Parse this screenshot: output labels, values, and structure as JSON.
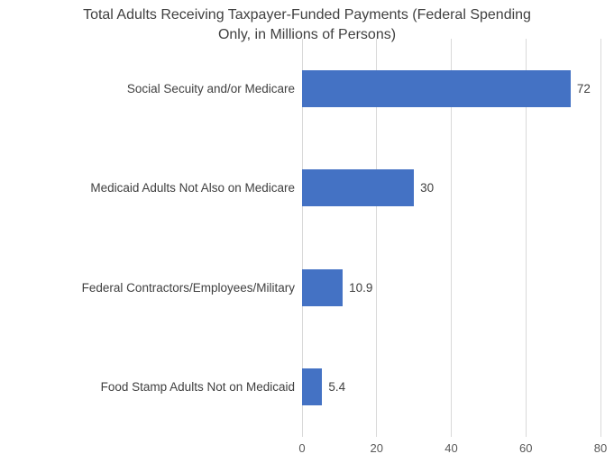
{
  "chart_data": {
    "type": "bar",
    "orientation": "horizontal",
    "title": "Total Adults Receiving Taxpayer-Funded Payments (Federal Spending Only, in Millions of Persons)",
    "title_lines": [
      "Total Adults Receiving Taxpayer-Funded Payments (Federal Spending",
      "Only, in Millions of Persons)"
    ],
    "categories": [
      "Social Secuity and/or Medicare",
      "Medicaid Adults Not Also on Medicare",
      "Federal Contractors/Employees/Military",
      "Food Stamp Adults Not on Medicaid"
    ],
    "values": [
      72,
      30,
      10.9,
      5.4
    ],
    "value_labels": [
      "72",
      "30",
      "10.9",
      "5.4"
    ],
    "xlabel": "",
    "ylabel": "",
    "xlim": [
      0,
      80
    ],
    "x_ticks": [
      0,
      20,
      40,
      60,
      80
    ],
    "x_tick_labels": [
      "0",
      "20",
      "40",
      "60",
      "80"
    ],
    "grid": "vertical",
    "legend": "none",
    "colors": {
      "bar": "#4472C4",
      "gridline": "#D9D9D9",
      "title_text": "#404040",
      "label_text": "#404040",
      "tick_text": "#595959"
    }
  }
}
